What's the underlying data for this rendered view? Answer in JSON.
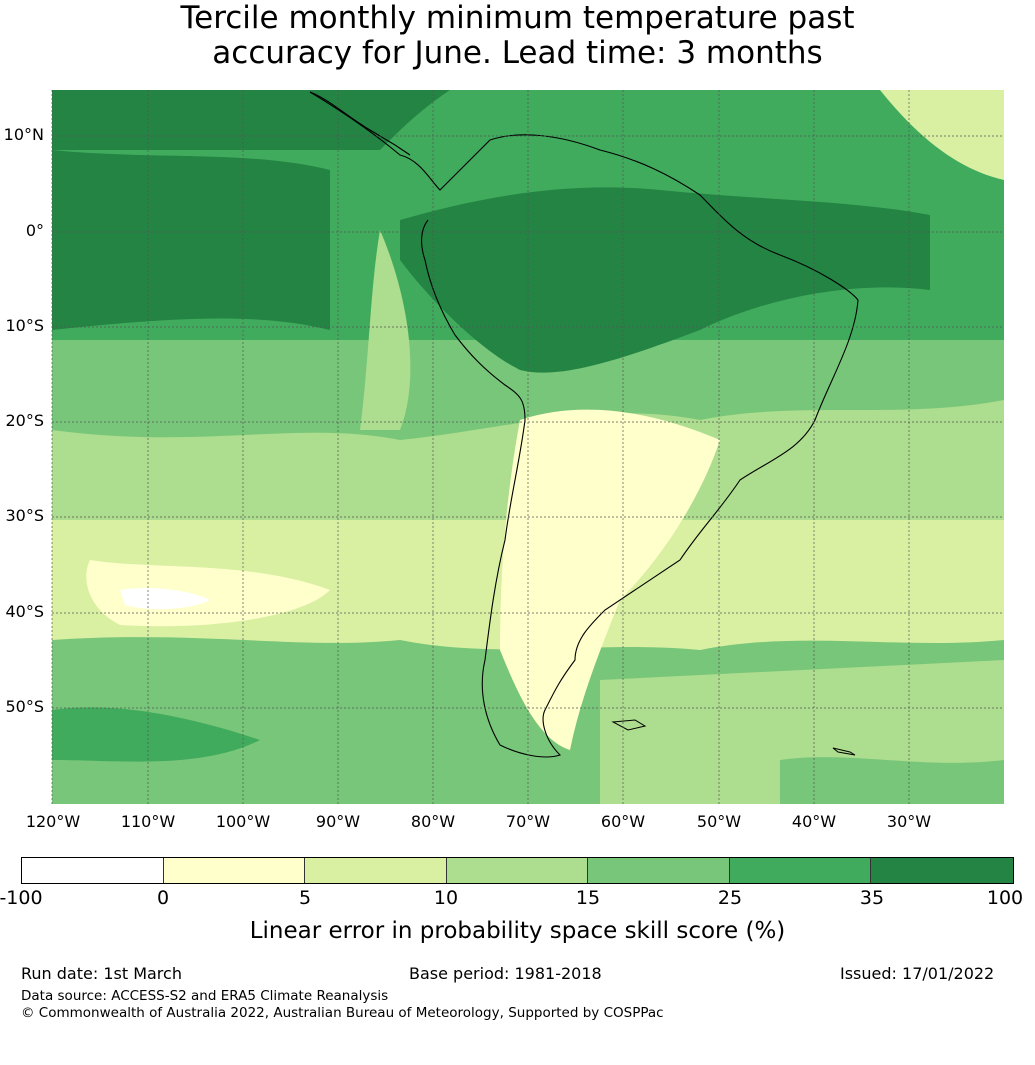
{
  "title_lines": [
    "Tercile monthly minimum temperature past",
    "accuracy for June. Lead time: 3 months"
  ],
  "map": {
    "lat_labels": [
      "10°N",
      "0°",
      "10°S",
      "20°S",
      "30°S",
      "40°S",
      "50°S"
    ],
    "lon_labels": [
      "120°W",
      "110°W",
      "100°W",
      "90°W",
      "80°W",
      "70°W",
      "60°W",
      "50°W",
      "40°W",
      "30°W"
    ],
    "grid": true,
    "coastline_color": "#000000",
    "gridline_color": "#555555"
  },
  "legend": {
    "ticks": [
      "-100",
      "0",
      "5",
      "10",
      "15",
      "25",
      "35",
      "100"
    ],
    "colors": [
      "#ffffff",
      "#ffffcc",
      "#d9f0a3",
      "#addd8e",
      "#78c679",
      "#41ab5d",
      "#238443"
    ],
    "label": "Linear error in probability space skill score (%)"
  },
  "footer": {
    "run_date": "Run date: 1st March",
    "base_period": "Base period: 1981-2018",
    "issued": "Issued: 17/01/2022",
    "data_source": "Data source: ACCESS-S2 and ERA5 Climate Reanalysis",
    "copyright": "© Commonwealth of Australia 2022, Australian Bureau of Meteorology, Supported by COSPPac"
  }
}
